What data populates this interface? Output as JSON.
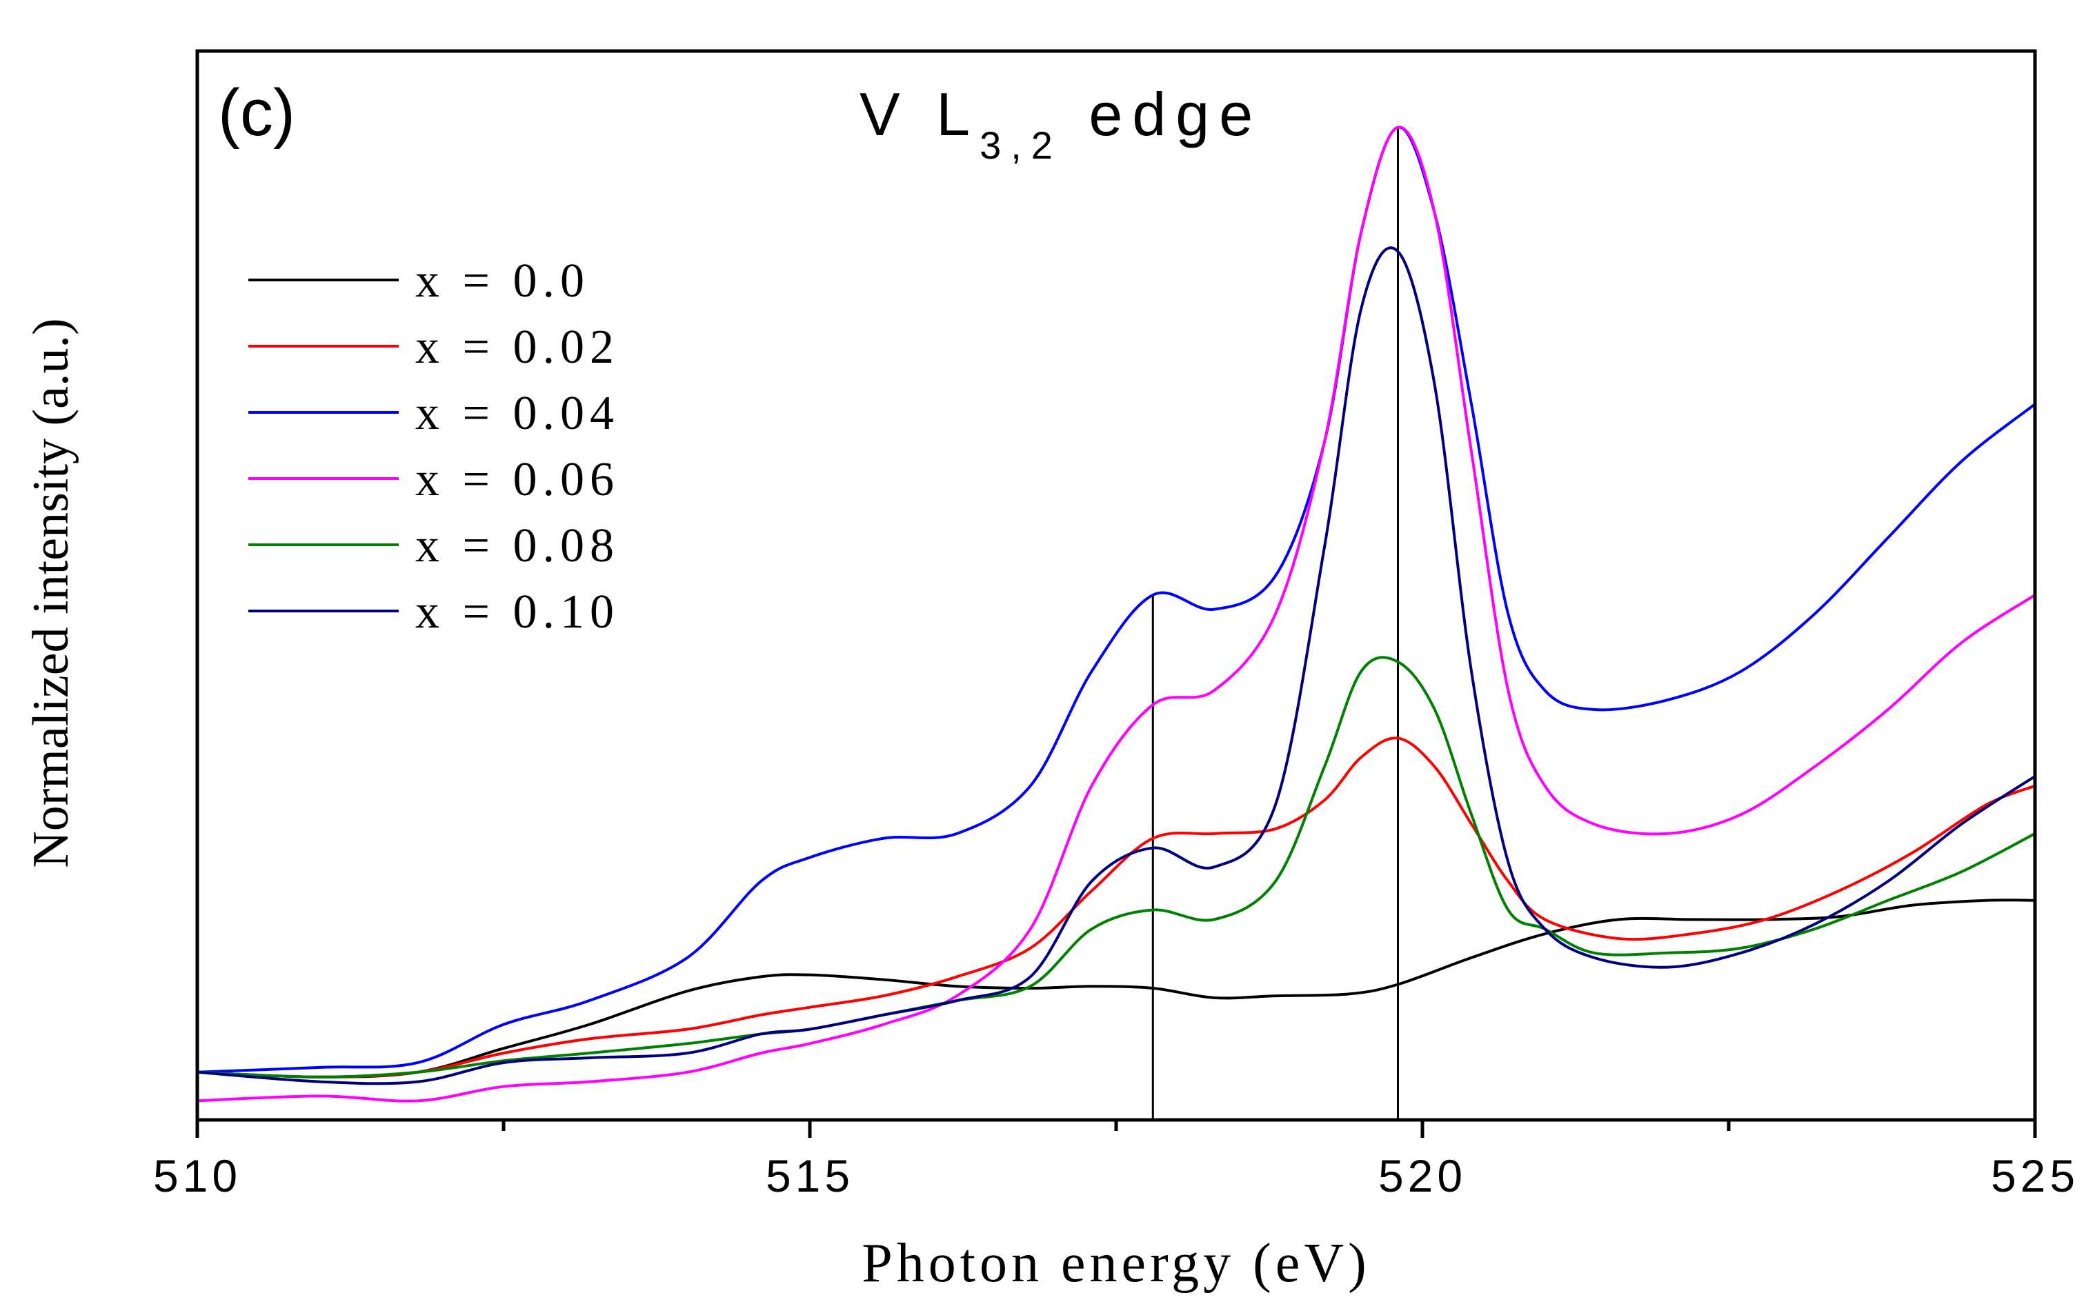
{
  "chart_data": {
    "type": "line",
    "panel_label": "(c)",
    "title": {
      "prefix": "V L",
      "subscript": "3,2",
      "suffix": " edge"
    },
    "xlabel": "Photon energy (eV)",
    "ylabel": "Normalized intensity (a.u.)",
    "xlim": [
      510,
      525
    ],
    "ylim": [
      -0.05,
      1.07
    ],
    "x_ticks": [
      510,
      515,
      520,
      525
    ],
    "x_tick_labels": [
      "510",
      "515",
      "520",
      "525"
    ],
    "x_minor_ticks": [
      512.5,
      517.5,
      522.5
    ],
    "y_ticks_shown": false,
    "reference_lines": [
      517.8,
      519.8
    ],
    "legend_position": "top-left",
    "series": [
      {
        "name": "x = 0.0",
        "color": "#000000",
        "x": [
          510,
          511,
          511.8,
          512.5,
          513.2,
          514,
          514.6,
          515,
          515.6,
          516.2,
          516.8,
          517.3,
          517.8,
          518.3,
          518.8,
          519.4,
          519.8,
          520.4,
          521,
          521.6,
          522.2,
          522.8,
          523.4,
          524,
          524.6,
          525
        ],
        "y": [
          0.0,
          -0.005,
          0.0,
          0.025,
          0.05,
          0.085,
          0.1,
          0.102,
          0.097,
          0.09,
          0.088,
          0.09,
          0.088,
          0.078,
          0.08,
          0.082,
          0.092,
          0.12,
          0.145,
          0.16,
          0.16,
          0.16,
          0.163,
          0.175,
          0.18,
          0.18
        ]
      },
      {
        "name": "x = 0.02",
        "color": "#ff0000",
        "x": [
          510,
          511,
          511.8,
          512.5,
          513.2,
          514,
          514.6,
          515,
          515.6,
          516.2,
          516.8,
          517.3,
          517.8,
          518.3,
          518.8,
          519.2,
          519.5,
          519.8,
          520.1,
          520.4,
          520.7,
          521,
          521.6,
          522.2,
          522.8,
          523.4,
          524,
          524.6,
          525
        ],
        "y": [
          0.0,
          -0.005,
          0.0,
          0.02,
          0.035,
          0.045,
          0.06,
          0.068,
          0.08,
          0.1,
          0.13,
          0.19,
          0.245,
          0.25,
          0.255,
          0.285,
          0.33,
          0.35,
          0.32,
          0.26,
          0.2,
          0.16,
          0.14,
          0.145,
          0.16,
          0.19,
          0.23,
          0.28,
          0.3
        ]
      },
      {
        "name": "x = 0.04",
        "color": "#0000ff",
        "x": [
          510,
          511,
          511.8,
          512.5,
          513.2,
          514,
          514.6,
          515,
          515.6,
          516.2,
          516.8,
          517.3,
          517.8,
          518.3,
          518.8,
          519.2,
          519.5,
          519.8,
          520.1,
          520.4,
          520.7,
          521,
          521.4,
          522,
          522.6,
          523.2,
          523.8,
          524.4,
          525
        ],
        "y": [
          0.0,
          0.005,
          0.01,
          0.05,
          0.075,
          0.12,
          0.2,
          0.225,
          0.245,
          0.25,
          0.3,
          0.42,
          0.5,
          0.485,
          0.52,
          0.66,
          0.88,
          0.99,
          0.9,
          0.7,
          0.48,
          0.4,
          0.38,
          0.39,
          0.42,
          0.48,
          0.56,
          0.64,
          0.7
        ]
      },
      {
        "name": "x = 0.06",
        "color": "#ff00ff",
        "x": [
          510,
          511,
          511.8,
          512.5,
          513.2,
          514,
          514.6,
          515,
          515.6,
          516.2,
          516.8,
          517.3,
          517.8,
          518.3,
          518.8,
          519.2,
          519.5,
          519.8,
          520.1,
          520.4,
          520.7,
          521,
          521.4,
          522,
          522.6,
          523.2,
          523.8,
          524.4,
          525
        ],
        "y": [
          -0.03,
          -0.025,
          -0.03,
          -0.015,
          -0.01,
          0.0,
          0.02,
          0.03,
          0.05,
          0.08,
          0.15,
          0.3,
          0.385,
          0.4,
          0.48,
          0.66,
          0.88,
          0.99,
          0.9,
          0.65,
          0.4,
          0.3,
          0.26,
          0.25,
          0.27,
          0.32,
          0.38,
          0.45,
          0.5
        ]
      },
      {
        "name": "x = 0.08",
        "color": "#008000",
        "x": [
          510,
          511,
          511.8,
          512.5,
          513.2,
          514,
          514.6,
          515,
          515.6,
          516.2,
          516.8,
          517.3,
          517.8,
          518.3,
          518.8,
          519.2,
          519.5,
          519.8,
          520.1,
          520.4,
          520.7,
          521,
          521.4,
          522,
          522.6,
          523.2,
          523.8,
          524.4,
          525
        ],
        "y": [
          0.0,
          -0.005,
          0.0,
          0.012,
          0.02,
          0.03,
          0.04,
          0.045,
          0.06,
          0.075,
          0.09,
          0.15,
          0.17,
          0.16,
          0.2,
          0.32,
          0.42,
          0.43,
          0.38,
          0.27,
          0.17,
          0.15,
          0.125,
          0.125,
          0.13,
          0.15,
          0.18,
          0.21,
          0.25
        ]
      },
      {
        "name": "x = 0.10",
        "color": "#00007f",
        "x": [
          510,
          511,
          511.8,
          512.5,
          513.2,
          514,
          514.6,
          515,
          515.6,
          516.2,
          516.8,
          517.3,
          517.8,
          518.3,
          518.8,
          519.2,
          519.5,
          519.8,
          520.1,
          520.4,
          520.7,
          521,
          521.4,
          522,
          522.6,
          523.2,
          523.8,
          524.4,
          525
        ],
        "y": [
          0.0,
          -0.01,
          -0.01,
          0.01,
          0.015,
          0.02,
          0.04,
          0.045,
          0.06,
          0.075,
          0.1,
          0.2,
          0.235,
          0.215,
          0.28,
          0.55,
          0.8,
          0.86,
          0.72,
          0.42,
          0.22,
          0.15,
          0.12,
          0.11,
          0.125,
          0.155,
          0.2,
          0.26,
          0.31
        ]
      }
    ]
  }
}
